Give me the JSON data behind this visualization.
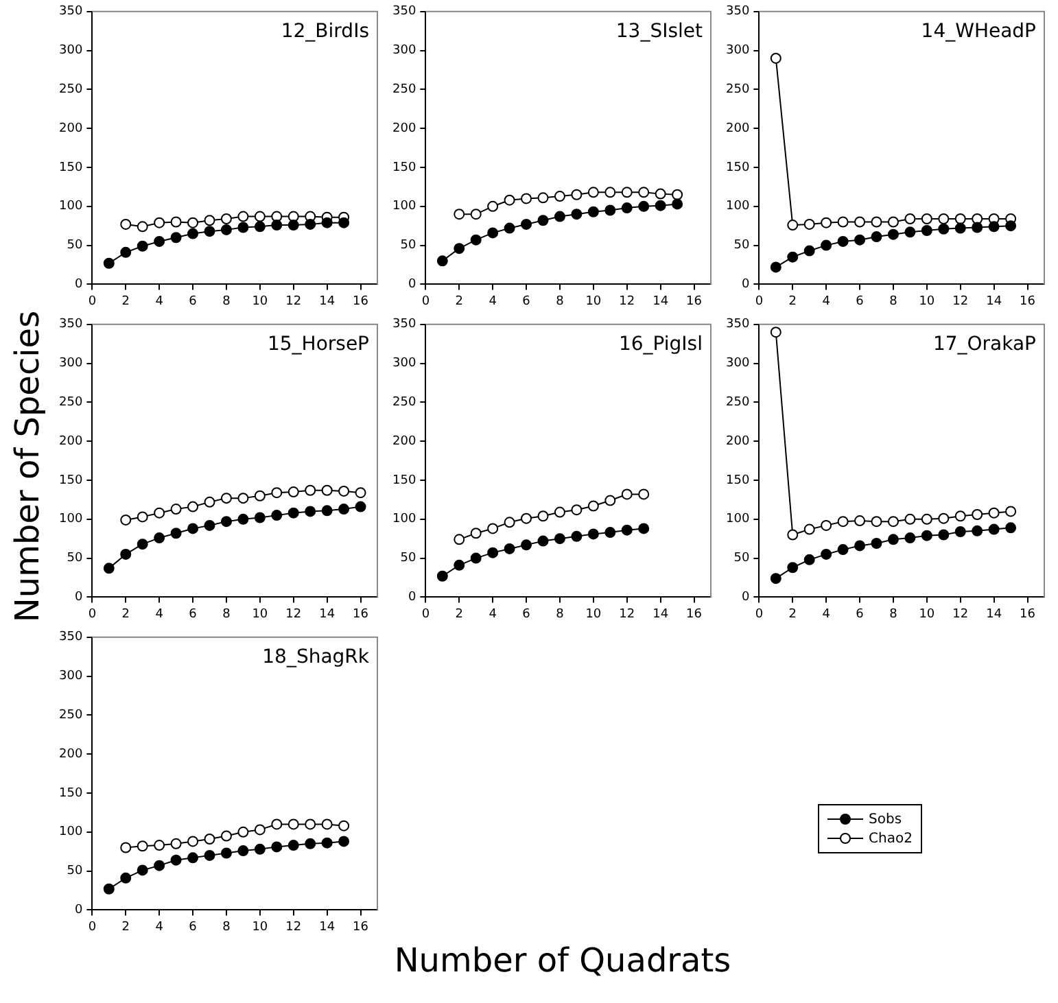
{
  "chart_data": [
    {
      "type": "line",
      "title": "12_BirdIs",
      "legend": "bottom right",
      "x": [
        1,
        2,
        3,
        4,
        5,
        6,
        7,
        8,
        9,
        10,
        11,
        12,
        13,
        14,
        15
      ],
      "xlim": [
        0,
        17
      ],
      "xticks": [
        0,
        2,
        4,
        6,
        8,
        10,
        12,
        14,
        16
      ],
      "ylim": [
        0,
        350
      ],
      "yticks": [
        0,
        50,
        100,
        150,
        200,
        250,
        300,
        350
      ],
      "marker": "circle",
      "grid": false,
      "series": [
        {
          "name": "Sobs",
          "color": "#000000",
          "values": [
            27,
            41,
            49,
            55,
            60,
            65,
            68,
            70,
            73,
            74,
            76,
            76,
            77,
            79,
            79
          ]
        },
        {
          "name": "Chao2",
          "color": "#000000",
          "values": [
            null,
            77,
            74,
            79,
            80,
            79,
            82,
            84,
            87,
            87,
            87,
            87,
            87,
            86,
            86
          ]
        }
      ]
    },
    {
      "type": "line",
      "title": "13_SIslet",
      "x": [
        1,
        2,
        3,
        4,
        5,
        6,
        7,
        8,
        9,
        10,
        11,
        12,
        13,
        14,
        15
      ],
      "xlim": [
        0,
        17
      ],
      "xticks": [
        0,
        2,
        4,
        6,
        8,
        10,
        12,
        14,
        16
      ],
      "ylim": [
        0,
        350
      ],
      "yticks": [
        0,
        50,
        100,
        150,
        200,
        250,
        300,
        350
      ],
      "marker": "circle",
      "grid": false,
      "series": [
        {
          "color": "#000000",
          "values": [
            30,
            46,
            57,
            66,
            72,
            77,
            82,
            87,
            90,
            93,
            95,
            98,
            100,
            101,
            103
          ]
        },
        {
          "color": "#000000",
          "values": [
            null,
            90,
            90,
            100,
            108,
            110,
            111,
            113,
            115,
            118,
            118,
            118,
            118,
            116,
            115
          ]
        }
      ]
    },
    {
      "type": "line",
      "title": "14_WHeadP",
      "x": [
        1,
        2,
        3,
        4,
        5,
        6,
        7,
        8,
        9,
        10,
        11,
        12,
        13,
        14,
        15
      ],
      "xlim": [
        0,
        17
      ],
      "xticks": [
        0,
        2,
        4,
        6,
        8,
        10,
        12,
        14,
        16
      ],
      "ylim": [
        0,
        350
      ],
      "yticks": [
        0,
        50,
        100,
        150,
        200,
        250,
        300,
        350
      ],
      "marker": "circle",
      "grid": false,
      "series": [
        {
          "color": "#000000",
          "values": [
            22,
            35,
            43,
            50,
            55,
            57,
            61,
            64,
            67,
            69,
            71,
            72,
            73,
            74,
            75
          ]
        },
        {
          "color": "#000000",
          "values": [
            290,
            76,
            77,
            79,
            80,
            80,
            80,
            80,
            84,
            84,
            84,
            84,
            84,
            84,
            84
          ]
        }
      ]
    },
    {
      "type": "line",
      "title": "15_HorseP",
      "ylabel": "Number of Species",
      "x": [
        1,
        2,
        3,
        4,
        5,
        6,
        7,
        8,
        9,
        10,
        11,
        12,
        13,
        14,
        15,
        16
      ],
      "xlim": [
        0,
        17
      ],
      "xticks": [
        0,
        2,
        4,
        6,
        8,
        10,
        12,
        14,
        16
      ],
      "ylim": [
        0,
        350
      ],
      "yticks": [
        0,
        50,
        100,
        150,
        200,
        250,
        300,
        350
      ],
      "marker": "circle",
      "grid": false,
      "series": [
        {
          "color": "#000000",
          "values": [
            37,
            55,
            68,
            76,
            82,
            88,
            92,
            97,
            100,
            102,
            105,
            108,
            110,
            111,
            113,
            116
          ]
        },
        {
          "color": "#000000",
          "values": [
            null,
            99,
            103,
            108,
            113,
            116,
            122,
            127,
            127,
            130,
            134,
            135,
            137,
            137,
            136,
            134
          ]
        }
      ]
    },
    {
      "type": "line",
      "title": "16_PigIsl",
      "x": [
        1,
        2,
        3,
        4,
        5,
        6,
        7,
        8,
        9,
        10,
        11,
        12,
        13
      ],
      "xlim": [
        0,
        17
      ],
      "xticks": [
        0,
        2,
        4,
        6,
        8,
        10,
        12,
        14,
        16
      ],
      "ylim": [
        0,
        350
      ],
      "yticks": [
        0,
        50,
        100,
        150,
        200,
        250,
        300,
        350
      ],
      "marker": "circle",
      "grid": false,
      "series": [
        {
          "color": "#000000",
          "values": [
            27,
            41,
            50,
            57,
            62,
            67,
            72,
            75,
            78,
            81,
            83,
            86,
            88
          ]
        },
        {
          "color": "#000000",
          "values": [
            null,
            74,
            82,
            88,
            96,
            101,
            104,
            109,
            112,
            117,
            124,
            132,
            132
          ]
        }
      ]
    },
    {
      "type": "line",
      "title": "17_OrakaP",
      "x": [
        1,
        2,
        3,
        4,
        5,
        6,
        7,
        8,
        9,
        10,
        11,
        12,
        13,
        14,
        15
      ],
      "xlim": [
        0,
        17
      ],
      "xticks": [
        0,
        2,
        4,
        6,
        8,
        10,
        12,
        14,
        16
      ],
      "ylim": [
        0,
        350
      ],
      "yticks": [
        0,
        50,
        100,
        150,
        200,
        250,
        300,
        350
      ],
      "marker": "circle",
      "grid": false,
      "series": [
        {
          "color": "#000000",
          "values": [
            24,
            38,
            48,
            55,
            61,
            66,
            69,
            74,
            76,
            79,
            80,
            84,
            85,
            87,
            89
          ]
        },
        {
          "color": "#000000",
          "values": [
            340,
            80,
            87,
            92,
            97,
            98,
            97,
            97,
            100,
            100,
            101,
            104,
            106,
            108,
            110
          ]
        }
      ]
    },
    {
      "type": "line",
      "title": "18_ShagRk",
      "xlabel": "Number of Quadrats",
      "x": [
        1,
        2,
        3,
        4,
        5,
        6,
        7,
        8,
        9,
        10,
        11,
        12,
        13,
        14,
        15
      ],
      "xlim": [
        0,
        17
      ],
      "xticks": [
        0,
        2,
        4,
        6,
        8,
        10,
        12,
        14,
        16
      ],
      "ylim": [
        0,
        350
      ],
      "yticks": [
        0,
        50,
        100,
        150,
        200,
        250,
        300,
        350
      ],
      "marker": "circle",
      "grid": false,
      "series": [
        {
          "color": "#000000",
          "values": [
            27,
            41,
            51,
            57,
            64,
            67,
            70,
            73,
            76,
            78,
            81,
            83,
            85,
            86,
            88
          ]
        },
        {
          "color": "#000000",
          "values": [
            null,
            80,
            82,
            83,
            85,
            88,
            91,
            95,
            100,
            103,
            110,
            110,
            110,
            110,
            108
          ]
        }
      ]
    }
  ]
}
